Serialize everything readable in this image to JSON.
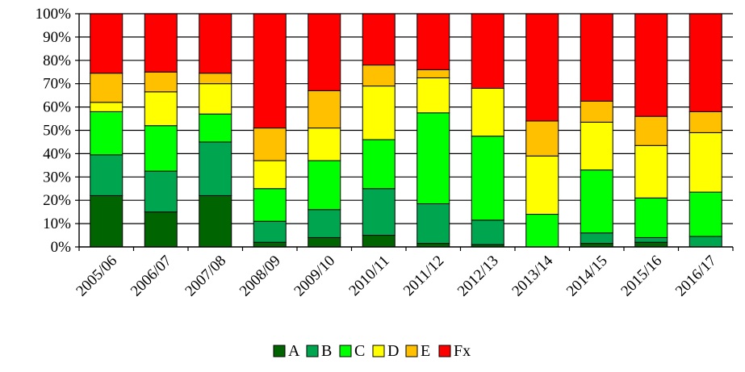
{
  "chart_data": {
    "type": "bar",
    "stacked": true,
    "percent": true,
    "categories": [
      "2005/06",
      "2006/07",
      "2007/08",
      "2008/09",
      "2009/10",
      "2010/11",
      "2011/12",
      "2012/13",
      "2013/14",
      "2014/15",
      "2015/16",
      "2016/17"
    ],
    "ylim": [
      0,
      100
    ],
    "yticks": [
      "0%",
      "10%",
      "20%",
      "30%",
      "40%",
      "50%",
      "60%",
      "70%",
      "80%",
      "90%",
      "100%"
    ],
    "grid": true,
    "legend_position": "bottom",
    "series": [
      {
        "name": "A",
        "color": "#006400",
        "values": [
          22,
          15,
          22,
          2,
          4,
          5,
          1.5,
          1,
          0,
          1.5,
          2,
          0
        ]
      },
      {
        "name": "B",
        "color": "#00A550",
        "values": [
          17.5,
          17.5,
          23,
          9,
          12,
          20,
          17,
          10.5,
          0,
          4.5,
          2,
          4.5
        ]
      },
      {
        "name": "C",
        "color": "#00FF00",
        "values": [
          18.5,
          19.5,
          12,
          14,
          21,
          21,
          39,
          36,
          14,
          27,
          17,
          19
        ]
      },
      {
        "name": "D",
        "color": "#FFFF00",
        "values": [
          4,
          14.5,
          13,
          12,
          14,
          23,
          15,
          20.5,
          25,
          20.5,
          22.5,
          25.5
        ]
      },
      {
        "name": "E",
        "color": "#FFC000",
        "values": [
          12.5,
          8.5,
          4.5,
          14,
          16,
          9,
          3.5,
          0,
          15,
          9,
          12.5,
          9
        ]
      },
      {
        "name": "Fx",
        "color": "#FF0000",
        "values": [
          25.5,
          25,
          25.5,
          49,
          33,
          22,
          24,
          32,
          46,
          37.5,
          44,
          42
        ]
      }
    ]
  }
}
